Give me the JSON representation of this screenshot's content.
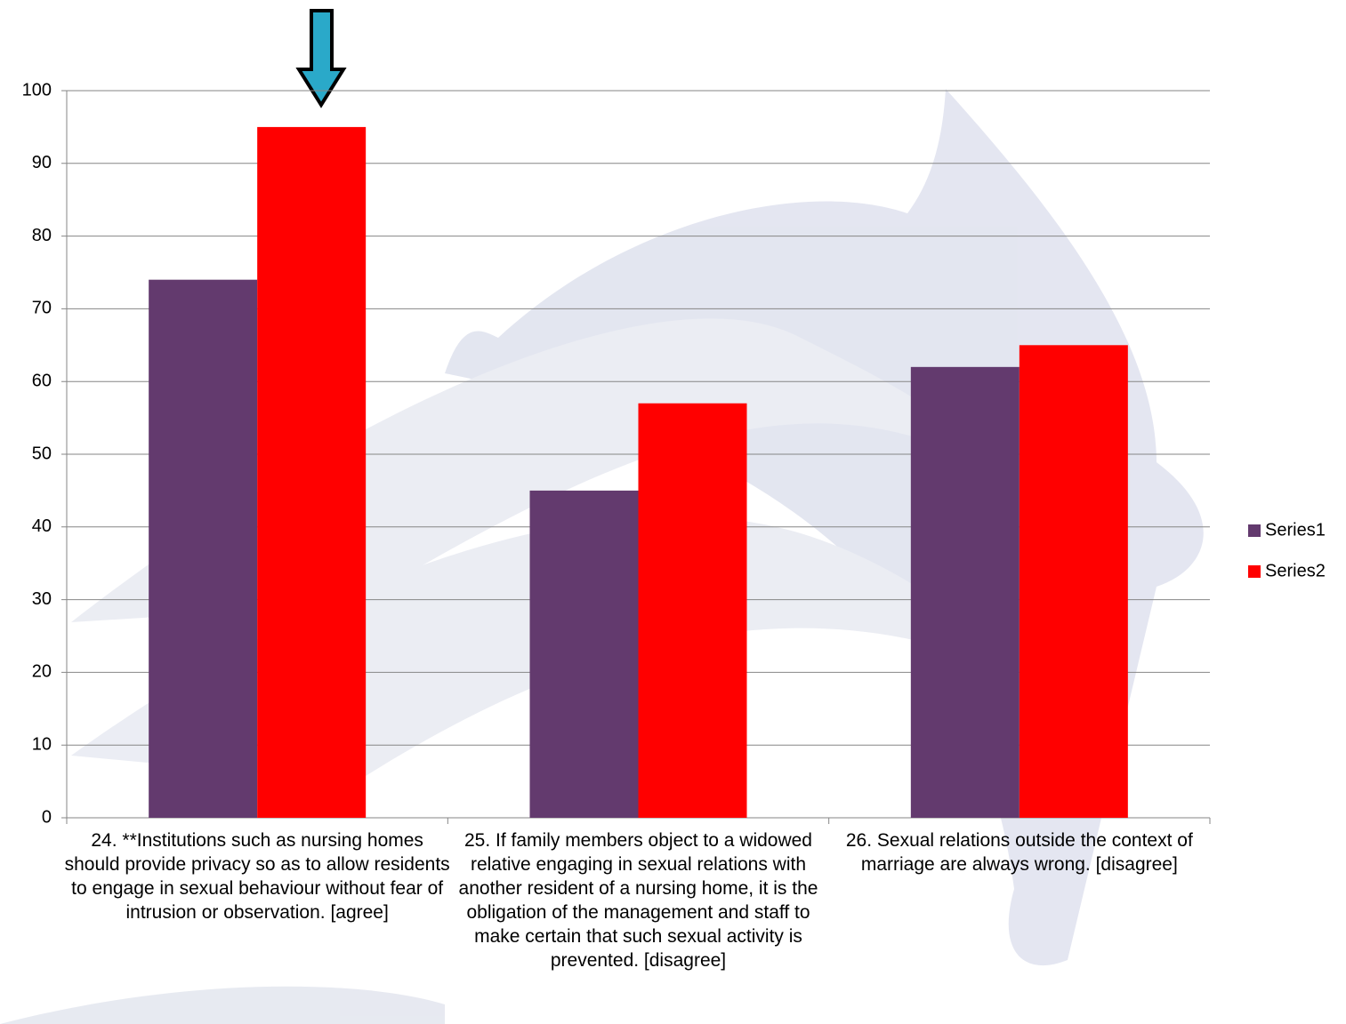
{
  "chart_data": {
    "type": "bar",
    "categories": [
      "24. **Institutions such as nursing homes should provide privacy so as to allow residents to engage in sexual behaviour without fear of intrusion or observation. [agree]",
      "25. If family members object to a widowed relative engaging in sexual relations with another resident of a nursing home, it is the obligation of the management and staff to make certain that such sexual activity is prevented. [disagree]",
      "26. Sexual relations outside the context of marriage are always wrong. [disagree]"
    ],
    "series": [
      {
        "name": "Series1",
        "color": "#633a6e",
        "values": [
          74,
          45,
          62
        ]
      },
      {
        "name": "Series2",
        "color": "#ff0000",
        "values": [
          95,
          57,
          65
        ]
      }
    ],
    "ylim": [
      0,
      100
    ],
    "yticks": [
      0,
      10,
      20,
      30,
      40,
      50,
      60,
      70,
      80,
      90,
      100
    ],
    "grid": true,
    "legend": "right"
  }
}
